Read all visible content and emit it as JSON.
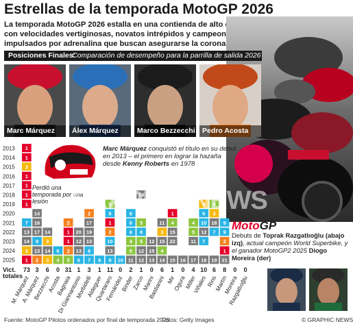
{
  "title": "Estrellas de la temporada MotoGP 2026",
  "subtitle": "La temporada MotoGP 2026 estalla en una contienda de alto octanaje con velocidades vertiginosas, novatos intrépidos y campeones impulsados por adrenalina que buscan asegurarse la corona",
  "section": {
    "label": "Posiciones Finales:",
    "description": "Comparación de desempeño para la parrilla de salida  2026"
  },
  "featured": [
    {
      "name": "Marc Márquez"
    },
    {
      "name": "Álex Márquez"
    },
    {
      "name": "Marco Bezzecchi"
    },
    {
      "name": "Pedro Acosta"
    }
  ],
  "annotation_main": {
    "part1": "Marc Márquez",
    "part2": " conquistó el título en su debut en 2013 – el primero en lograr la hazaña desde ",
    "part3": "Kenny Roberts",
    "part4": " en 1978"
  },
  "annotation_injury": "Perdió una temporada por una lesión",
  "watermark": "GRAPHIC NEWS",
  "logo": {
    "moto": "Moto",
    "gp": "GP"
  },
  "debut_note": {
    "t1": "Debuts de ",
    "t2": "Toprak Razgatlıoğlu (abajo izq)",
    "t3": ", actual campeón World Superbike, y el ganador MotoGP2 2025 ",
    "t4": "Diogo Moreira (der)"
  },
  "footer": {
    "source": "Fuente: MotoGP  Pilotos ordenados por final de temporada 2025",
    "photos": "Fotos: Getty Images",
    "credit": "© GRAPHIC NEWS"
  },
  "colors": {
    "p1": "#e4002b",
    "p2": "#f58220",
    "p3": "#f6b90f",
    "top5": "#8dc63f",
    "top10": "#29b5e5",
    "other": "#7b7b7b",
    "dark": "#1b1b1b"
  },
  "chart_data": {
    "type": "table",
    "years": [
      "2013",
      "2014",
      "2015",
      "2016",
      "2017",
      "2018",
      "2019",
      "2020",
      "2021",
      "2022",
      "2023",
      "2024",
      "2025"
    ],
    "totals_label": "Vict. totales",
    "riders": [
      {
        "name": "M. Márquez",
        "total": "73",
        "positions": [
          "1",
          "1",
          "3",
          "1",
          "1",
          "1",
          "1",
          "",
          "7",
          "13",
          "14",
          "3",
          "1"
        ]
      },
      {
        "name": "A. Márquez",
        "total": "3",
        "positions": [
          "",
          "",
          "",
          "",
          "",
          "",
          "",
          "14",
          "16",
          "17",
          "9",
          "13",
          "2"
        ]
      },
      {
        "name": "Bezzecchi",
        "total": "6",
        "positions": [
          "",
          "",
          "",
          "",
          "",
          "",
          "",
          "",
          "",
          "14",
          "3",
          "14",
          "3"
        ]
      },
      {
        "name": "Acosta",
        "total": "0",
        "positions": [
          "",
          "",
          "",
          "",
          "",
          "",
          "",
          "",
          "",
          "",
          "",
          "6",
          "4"
        ]
      },
      {
        "name": "Bagnaia",
        "total": "31",
        "positions": [
          "",
          "",
          "",
          "",
          "",
          "",
          "",
          "",
          "2",
          "1",
          "1",
          "2",
          "5"
        ]
      },
      {
        "name": "Di Giannantonio",
        "total": "1",
        "positions": [
          "",
          "",
          "",
          "",
          "",
          "",
          "",
          "",
          "",
          "20",
          "12",
          "13",
          "6"
        ]
      },
      {
        "name": "Morbidelli",
        "total": "3",
        "positions": [
          "",
          "",
          "",
          "",
          "",
          "",
          "",
          "2",
          "17",
          "19",
          "13",
          "8",
          "7"
        ]
      },
      {
        "name": "Aldeguer",
        "total": "1",
        "positions": [
          "",
          "",
          "",
          "",
          "",
          "",
          "",
          "",
          "",
          "",
          "",
          "",
          "8"
        ]
      },
      {
        "name": "Quartararo",
        "total": "11",
        "positions": [
          "",
          "",
          "",
          "",
          "",
          "",
          "5",
          "8",
          "1",
          "2",
          "10",
          "13",
          "9"
        ]
      },
      {
        "name": "Fernández",
        "total": "0",
        "positions": [
          "",
          "",
          "",
          "",
          "",
          "",
          "",
          "",
          "",
          "",
          "",
          "",
          "10"
        ]
      },
      {
        "name": "Binder",
        "total": "2",
        "positions": [
          "",
          "",
          "",
          "",
          "",
          "",
          "",
          "6",
          "6",
          "6",
          "4",
          "5",
          "11"
        ]
      },
      {
        "name": "Zarco",
        "total": "1",
        "positions": [
          "",
          "",
          "",
          "",
          "",
          "14",
          "",
          "",
          "5",
          "8",
          "5",
          "12",
          "12"
        ]
      },
      {
        "name": "Marini",
        "total": "0",
        "positions": [
          "",
          "",
          "",
          "",
          "",
          "",
          "",
          "",
          "",
          "",
          "12",
          "15",
          "13"
        ]
      },
      {
        "name": "Bastianini",
        "total": "6",
        "positions": [
          "",
          "",
          "",
          "",
          "",
          "",
          "",
          "",
          "11",
          "3",
          "15",
          "4",
          "14"
        ]
      },
      {
        "name": "Mir",
        "total": "1",
        "positions": [
          "",
          "",
          "",
          "",
          "",
          "",
          "",
          "1",
          "4",
          "15",
          "22",
          "",
          "15"
        ]
      },
      {
        "name": "Ogura",
        "total": "0",
        "positions": [
          "",
          "",
          "",
          "",
          "",
          "",
          "",
          "",
          "",
          "",
          "",
          "",
          "16"
        ]
      },
      {
        "name": "Miller",
        "total": "4",
        "positions": [
          "",
          "",
          "",
          "",
          "",
          "",
          "",
          "",
          "4",
          "5",
          "11",
          "",
          "17"
        ]
      },
      {
        "name": "Viñales",
        "total": "10",
        "positions": [
          "",
          "",
          "",
          "",
          "",
          "",
          "3",
          "6",
          "10",
          "12",
          "7",
          "",
          "18"
        ]
      },
      {
        "name": "Rins",
        "total": "6",
        "positions": [
          "",
          "",
          "",
          "",
          "",
          "",
          "4",
          "3",
          "18",
          "7",
          "",
          "",
          "19"
        ]
      },
      {
        "name": "Martín",
        "total": "8",
        "positions": [
          "",
          "",
          "",
          "",
          "",
          "",
          "",
          "",
          "9",
          "9",
          "2",
          "1",
          "21"
        ]
      },
      {
        "name": "Moreira",
        "total": "0",
        "positions": [
          "",
          "",
          "",
          "",
          "",
          "",
          "",
          "",
          "",
          "",
          "",
          "",
          ""
        ]
      },
      {
        "name": "Razgatlıoğlu",
        "total": "0",
        "positions": [
          "",
          "",
          "",
          "",
          "",
          "",
          "",
          "",
          "",
          "",
          "",
          "",
          ""
        ]
      }
    ]
  }
}
